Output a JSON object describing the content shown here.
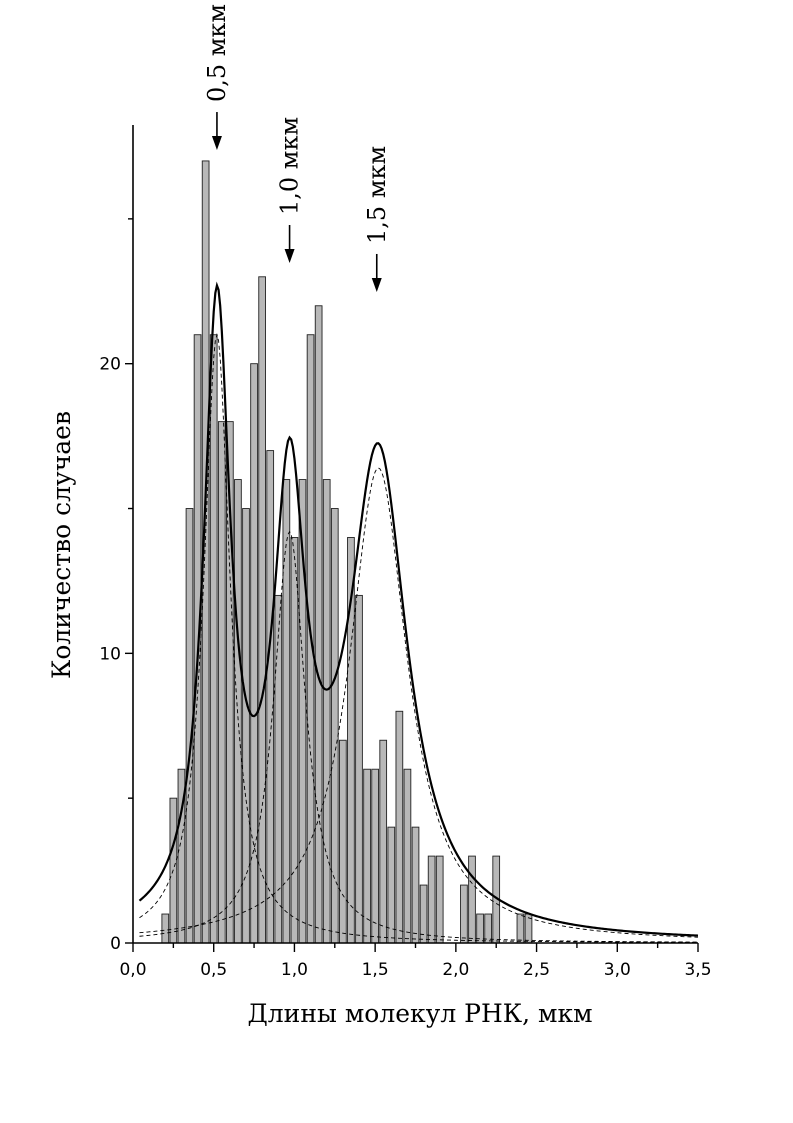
{
  "chart_data": {
    "type": "bar",
    "xlabel": "Длины молекул РНК, мкм",
    "ylabel": "Количество случаев",
    "xlim": [
      0.0,
      3.5
    ],
    "ylim": [
      0,
      29
    ],
    "x_ticks": [
      0.0,
      0.5,
      1.0,
      1.5,
      2.0,
      2.5,
      3.0,
      3.5
    ],
    "x_tick_labels": [
      "0,0",
      "0,5",
      "1,0",
      "1,5",
      "2,0",
      "2,5",
      "3,0",
      "3,5"
    ],
    "y_ticks": [
      0,
      10,
      20
    ],
    "y_tick_labels": [
      "0",
      "10",
      "20"
    ],
    "bin_width": 0.05,
    "x": [
      0.2,
      0.25,
      0.3,
      0.35,
      0.4,
      0.45,
      0.5,
      0.55,
      0.6,
      0.65,
      0.7,
      0.75,
      0.8,
      0.85,
      0.9,
      0.95,
      1.0,
      1.05,
      1.1,
      1.15,
      1.2,
      1.25,
      1.3,
      1.35,
      1.4,
      1.45,
      1.5,
      1.55,
      1.6,
      1.65,
      1.7,
      1.75,
      1.8,
      1.85,
      1.9,
      1.95,
      2.0,
      2.05,
      2.1,
      2.15,
      2.2,
      2.25,
      2.3,
      2.35,
      2.4,
      2.45,
      2.5,
      2.55,
      2.6,
      2.65,
      2.7,
      2.75,
      2.8,
      2.85,
      2.9,
      2.95,
      3.0,
      3.05,
      3.1,
      3.15
    ],
    "values": [
      1,
      5,
      6,
      15,
      21,
      27,
      21,
      18,
      18,
      16,
      15,
      20,
      23,
      17,
      12,
      16,
      14,
      16,
      21,
      22,
      16,
      15,
      7,
      14,
      12,
      6,
      6,
      7,
      4,
      8,
      6,
      4,
      2,
      3,
      3,
      0,
      0,
      2,
      3,
      1,
      1,
      3,
      0,
      0,
      1,
      1,
      0,
      0,
      0,
      0,
      0,
      0,
      0,
      0,
      0,
      0,
      0,
      0,
      0,
      0
    ],
    "fit": {
      "type": "lorentzian",
      "total_style": "solid",
      "component_style": "dashed",
      "components": [
        {
          "center": 0.52,
          "amplitude": 21.0,
          "hwhm": 0.1
        },
        {
          "center": 0.97,
          "amplitude": 14.2,
          "hwhm": 0.12
        },
        {
          "center": 1.52,
          "amplitude": 16.4,
          "hwhm": 0.22
        }
      ]
    },
    "annotations": [
      {
        "text": "0,5 мкм",
        "x": 0.52,
        "arrow_tip_y": 27.1
      },
      {
        "text": "1,0 мкм",
        "x": 0.97,
        "arrow_tip_y": 23.2
      },
      {
        "text": "1,5 мкм",
        "x": 1.51,
        "arrow_tip_y": 22.2
      }
    ]
  }
}
